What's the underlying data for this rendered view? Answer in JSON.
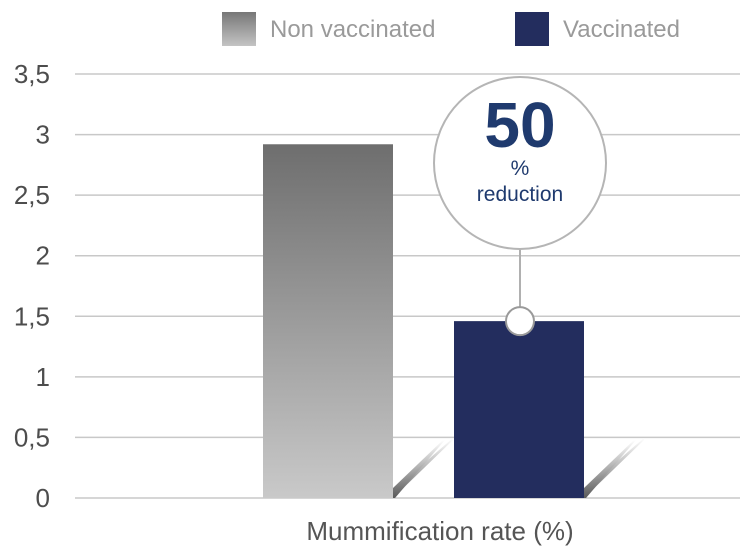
{
  "chart_data": {
    "type": "bar",
    "title": "",
    "xlabel": "Mummification rate (%)",
    "ylabel": "",
    "ylim": [
      0,
      3.5
    ],
    "yticks": [
      "0",
      "0,5",
      "1",
      "1,5",
      "2",
      "2,5",
      "3",
      "3,5"
    ],
    "grid": true,
    "legend_position": "top-right",
    "series": [
      {
        "name": "Non vaccinated",
        "values": [
          2.92
        ],
        "color": "#7a7a7a"
      },
      {
        "name": "Vaccinated",
        "values": [
          1.46
        ],
        "color": "#232d5e"
      }
    ],
    "annotation": {
      "value": "50",
      "unit": "%",
      "text": "reduction",
      "color": "#1f3a6e"
    }
  }
}
